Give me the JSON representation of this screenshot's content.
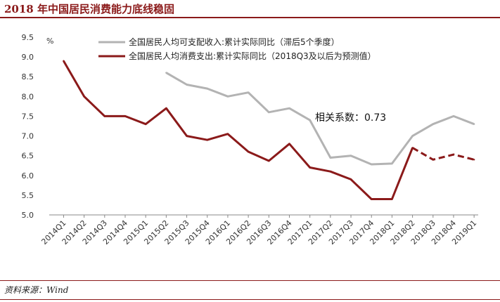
{
  "header": {
    "title": "2018 年中国居民消费能力底线稳固"
  },
  "footer": {
    "source": "资料来源：Wind"
  },
  "chart_data": {
    "type": "line",
    "unit": "%",
    "categories": [
      "2014Q1",
      "2014Q2",
      "2014Q3",
      "2014Q4",
      "2015Q1",
      "2015Q2",
      "2015Q3",
      "2015Q4",
      "2016Q1",
      "2016Q2",
      "2016Q3",
      "2016Q4",
      "2017Q1",
      "2017Q2",
      "2017Q3",
      "2017Q4",
      "2018Q1",
      "2018Q2",
      "2018Q3",
      "2018Q4",
      "2019Q1"
    ],
    "ylim": [
      5.0,
      9.5
    ],
    "yticks": [
      "9.5",
      "9.0",
      "8.5",
      "8.0",
      "7.5",
      "7.0",
      "6.5",
      "6.0",
      "5.5",
      "5.0"
    ],
    "series": [
      {
        "name": "全国居民人均可支配收入:累计实际同比（滞后5个季度）",
        "color": "#b3b3b3",
        "values": [
          null,
          null,
          null,
          null,
          null,
          8.6,
          8.3,
          8.2,
          8.0,
          8.1,
          7.6,
          7.7,
          7.4,
          6.45,
          6.5,
          6.28,
          6.3,
          7.0,
          7.3,
          7.5,
          7.3
        ]
      },
      {
        "name": "全国居民人均消费支出:累计实际同比（2018Q3及以后为预测值）",
        "color": "#8b1a1a",
        "values": [
          8.9,
          8.0,
          7.5,
          7.5,
          7.3,
          7.7,
          7.0,
          6.9,
          7.05,
          6.6,
          6.37,
          6.8,
          6.2,
          6.1,
          5.9,
          5.4,
          5.4,
          6.7,
          6.4,
          6.53,
          6.4
        ],
        "forecast_from_index": 17
      }
    ],
    "annotation": {
      "label": "相关系数：",
      "value": "0.73"
    },
    "legend_position": "top-center",
    "grid": false
  }
}
